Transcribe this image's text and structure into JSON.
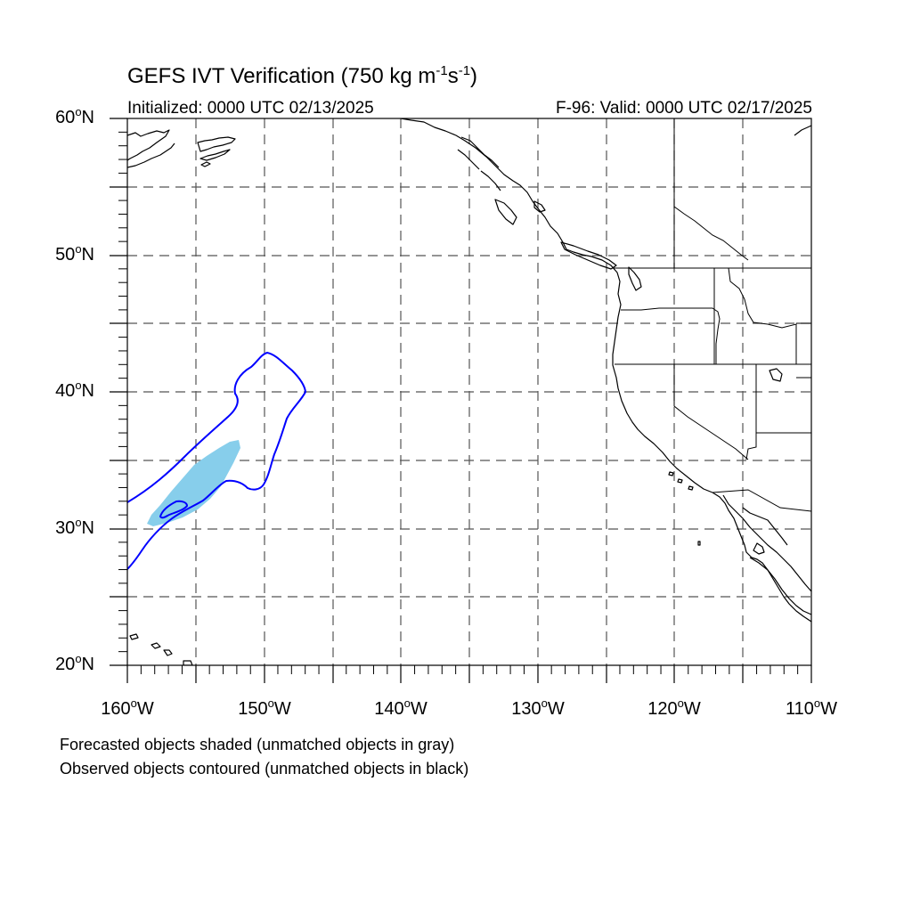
{
  "title": {
    "main": "GEFS IVT Verification (750 kg m",
    "exp1": "-1",
    "mid": "s",
    "exp2": "-1",
    "close": ")"
  },
  "subtitle_left": "Initialized: 0000 UTC 02/13/2025",
  "subtitle_right": "F-96: Valid: 0000 UTC 02/17/2025",
  "lat_labels": [
    {
      "val": "60",
      "hem": "N"
    },
    {
      "val": "50",
      "hem": "N"
    },
    {
      "val": "40",
      "hem": "N"
    },
    {
      "val": "30",
      "hem": "N"
    },
    {
      "val": "20",
      "hem": "N"
    }
  ],
  "lon_labels": [
    {
      "val": "160",
      "hem": "W"
    },
    {
      "val": "150",
      "hem": "W"
    },
    {
      "val": "140",
      "hem": "W"
    },
    {
      "val": "130",
      "hem": "W"
    },
    {
      "val": "120",
      "hem": "W"
    },
    {
      "val": "110",
      "hem": "W"
    }
  ],
  "degree_symbol": "o",
  "notes": [
    "Forecasted objects shaded (unmatched objects in gray)",
    "Observed objects contoured (unmatched objects in black)"
  ],
  "colors": {
    "forecast_fill": "#87ceeb",
    "observed_contour": "#0000ff",
    "coastline": "#000000",
    "grid": "#555555"
  },
  "map_extent": {
    "lon_min": -160,
    "lon_max": -110,
    "lat_min": 20,
    "lat_max": 60
  }
}
